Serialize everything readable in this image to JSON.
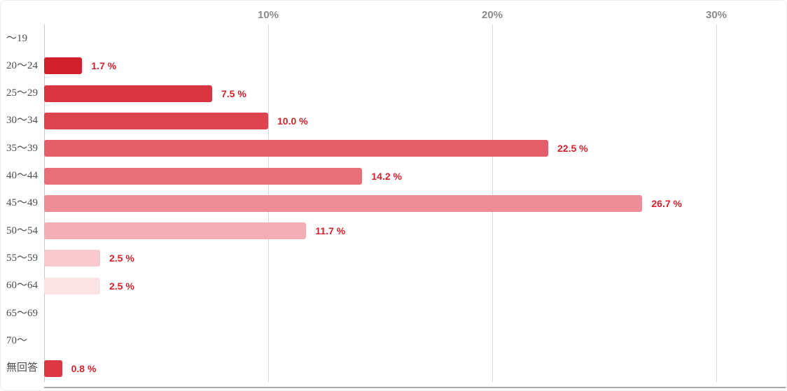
{
  "chart_data": {
    "type": "bar",
    "orientation": "horizontal",
    "title": "",
    "xlabel": "",
    "ylabel": "",
    "categories": [
      "～19",
      "20～24",
      "25～29",
      "30～34",
      "35～39",
      "40～44",
      "45～49",
      "50～54",
      "55～59",
      "60～64",
      "65～69",
      "70～",
      "無回答"
    ],
    "values": [
      0,
      1.7,
      7.5,
      10.0,
      22.5,
      14.2,
      26.7,
      11.7,
      2.5,
      2.5,
      0,
      0,
      0.8
    ],
    "value_labels": [
      "",
      "1.7 %",
      "7.5 %",
      "10.0 %",
      "22.5 %",
      "14.2 %",
      "26.7 %",
      "11.7 %",
      "2.5 %",
      "2.5 %",
      "",
      "",
      "0.8 %"
    ],
    "bar_colors": [
      "",
      "#d0202c",
      "#d93541",
      "#de4450",
      "#e45f6a",
      "#e86f7a",
      "#ee8d97",
      "#f3adb4",
      "#f8c9ce",
      "#fbe3e5",
      "",
      "",
      "#dc3742"
    ],
    "x_ticks": [
      "10%",
      "20%",
      "30%"
    ],
    "x_tick_values": [
      10,
      20,
      30
    ],
    "xlim": [
      0,
      32.4
    ],
    "grid": true,
    "legend": "none",
    "colors": {
      "value_label": "#d6212d",
      "axis_tick_label": "#8b8b8b",
      "category_label": "#4f4f4f",
      "gridline": "#d9d9d9",
      "axis_line": "#c9c9c9",
      "baseline": "#a8a8a8",
      "background": "#ffffff"
    }
  }
}
